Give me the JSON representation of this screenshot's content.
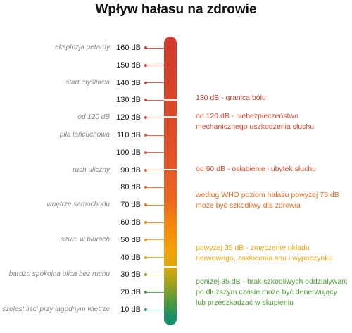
{
  "title": "Wpływ hałasu na zdrowie",
  "scale": [
    {
      "db": "160 dB",
      "source": "eksplozja petardy",
      "color": "#d03a2c"
    },
    {
      "db": "150 dB",
      "source": "",
      "color": "#d03a2c"
    },
    {
      "db": "140 dB",
      "source": "start myśliwca",
      "color": "#d23c2c"
    },
    {
      "db": "130 dB",
      "source": "",
      "color": "#d5402c"
    },
    {
      "db": "120 dB",
      "source": "od 120 dB",
      "color": "#d8482a"
    },
    {
      "db": "110 dB",
      "source": "piła łańcuchowa",
      "color": "#dc4f2a"
    },
    {
      "db": "100 dB",
      "source": "",
      "color": "#e0552a"
    },
    {
      "db": "90 dB",
      "source": "ruch uliczny",
      "color": "#e55e28"
    },
    {
      "db": "80 dB",
      "source": "",
      "color": "#ea6a22"
    },
    {
      "db": "70 dB",
      "source": "wnętrze samochodu",
      "color": "#ee7418"
    },
    {
      "db": "60 dB",
      "source": "",
      "color": "#f38610"
    },
    {
      "db": "50 dB",
      "source": "szum w biurach",
      "color": "#f39a0a"
    },
    {
      "db": "40 dB",
      "source": "",
      "color": "#e6a50c"
    },
    {
      "db": "30 dB",
      "source": "bardzo spokojna ulica bez ruchu",
      "color": "#8a9c25"
    },
    {
      "db": "20 dB",
      "source": "",
      "color": "#3f9a44"
    },
    {
      "db": "10 dB",
      "source": "szelest liści przy łagodnym wietrze",
      "color": "#1a9070"
    }
  ],
  "notes": [
    {
      "lines": [
        "130 dB - granica bólu"
      ],
      "color": "#d23a2b"
    },
    {
      "lines": [
        "od 120 dB - niebezpieczeństwo",
        "mechanicznego uszkodzenia słuchu"
      ],
      "color": "#d8432a"
    },
    {
      "lines": [
        "od 90 dB - osłabienie i ubytek słuchu"
      ],
      "color": "#e0502a"
    },
    {
      "lines": [
        "według WHO poziom hałasu powyżej 75 dB",
        "może być szkodliwy dla zdrowia"
      ],
      "color": "#eb6a1f"
    },
    {
      "lines": [
        "powyżej 35 dB - zmęczenie układu",
        "nerwowego, zakłócenia snu i wypoczynku"
      ],
      "color": "#f0a50b"
    },
    {
      "lines": [
        "poniżej 35 dB - brak szkodliwych oddziaływań;",
        "po dłuższym czasie może być denerwujący",
        "lub przeszkadzać w skupieniu"
      ],
      "color": "#4f9a35"
    }
  ]
}
